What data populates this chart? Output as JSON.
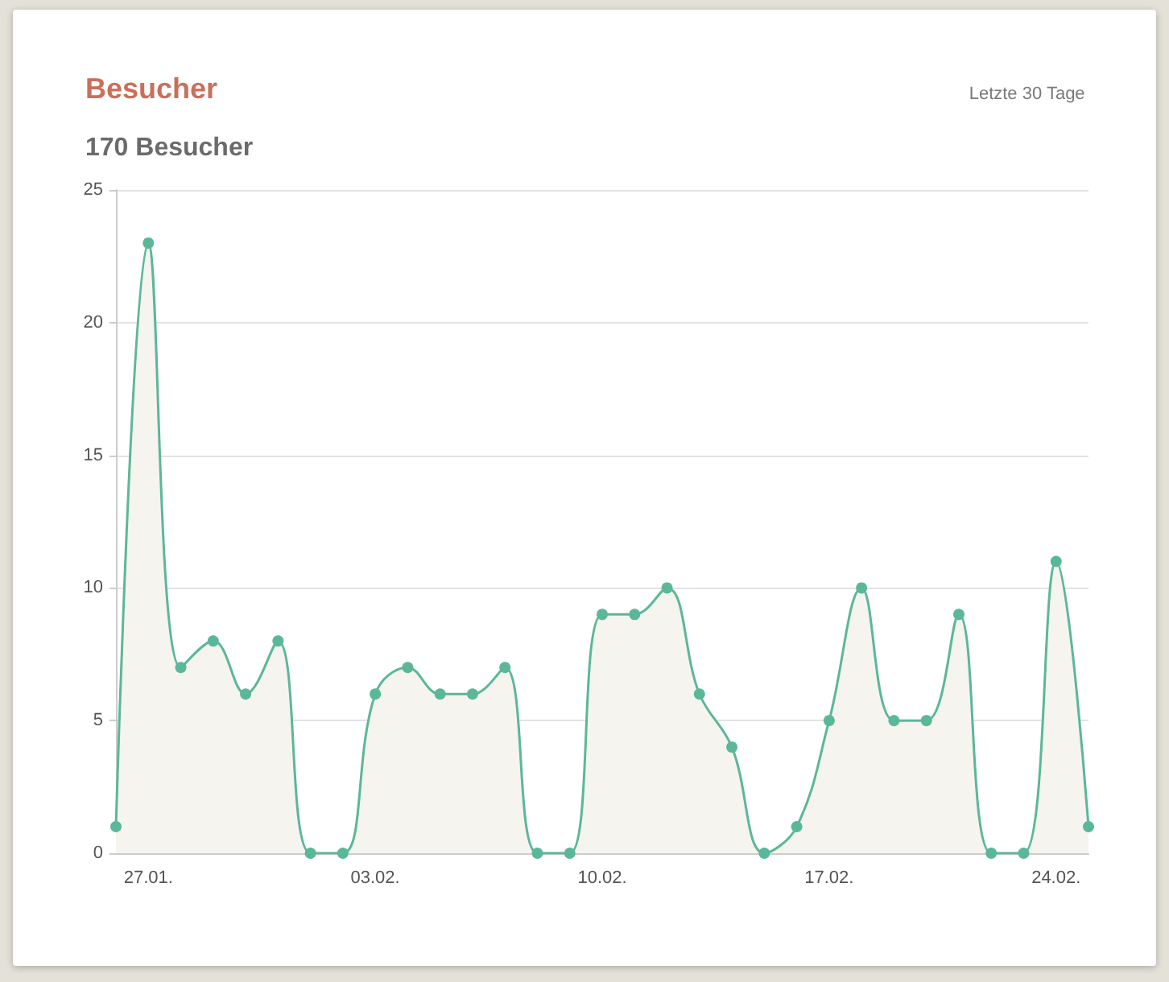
{
  "chart_data": {
    "type": "area",
    "title": "Besucher",
    "subtitle": "170 Besucher",
    "annotations": [
      "Letzte 30 Tage"
    ],
    "categories": [
      null,
      "27.01.",
      null,
      null,
      null,
      null,
      null,
      null,
      "03.02.",
      null,
      null,
      null,
      null,
      null,
      null,
      "10.02.",
      null,
      null,
      null,
      null,
      null,
      null,
      "17.02.",
      null,
      null,
      null,
      null,
      null,
      null,
      "24.02.",
      null
    ],
    "series": [
      {
        "color": "#5bb79a",
        "values": [
          1,
          23,
          7,
          8,
          6,
          8,
          0,
          0,
          6,
          7,
          6,
          6,
          7,
          0,
          0,
          9,
          9,
          10,
          6,
          4,
          0,
          1,
          5,
          10,
          5,
          5,
          9,
          0,
          0,
          11,
          1
        ]
      }
    ],
    "ylim": [
      0,
      25
    ],
    "yticks": [
      0,
      5,
      10,
      15,
      20,
      25
    ],
    "grid": "y",
    "marker": "circle",
    "line_style": "solid"
  }
}
